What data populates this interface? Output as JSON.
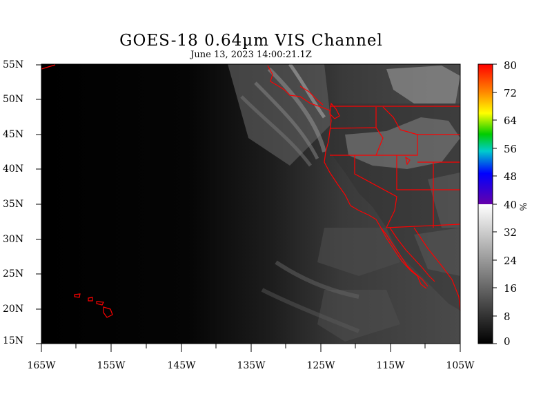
{
  "title": "GOES-18  0.64µm VIS Channel",
  "subtitle": "June 13,  2023 14:00:21.1Z",
  "lat_labels": [
    "55N",
    "50N",
    "45N",
    "40N",
    "35N",
    "30N",
    "25N",
    "20N",
    "15N"
  ],
  "lon_labels": [
    "165W",
    "155W",
    "145W",
    "135W",
    "125W",
    "115W",
    "105W"
  ],
  "colorbar": {
    "ticks": [
      "80",
      "72",
      "64",
      "56",
      "48",
      "40",
      "32",
      "24",
      "16",
      "8",
      "0"
    ],
    "unit": "%"
  },
  "colors": {
    "border": "#ff0000",
    "background": "#000000"
  }
}
